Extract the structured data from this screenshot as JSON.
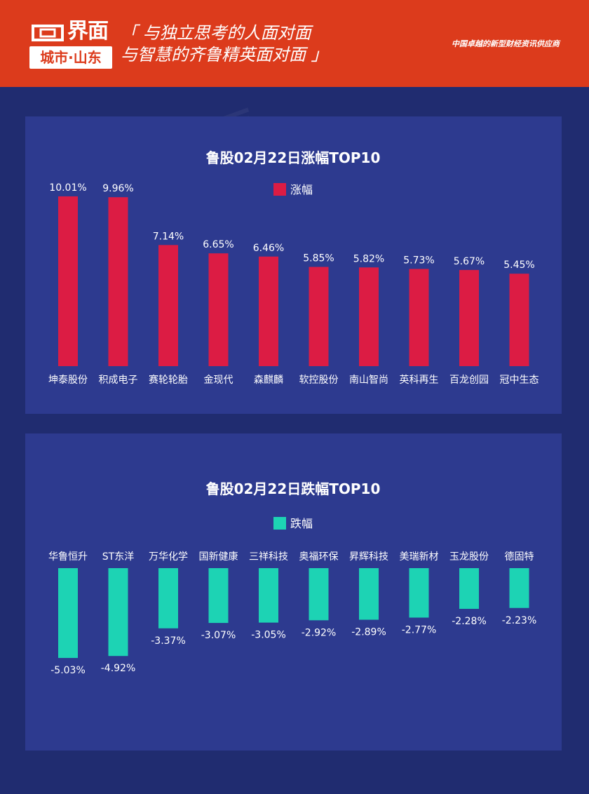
{
  "header": {
    "logo_name": "界面",
    "logo_sub": "城市·山东",
    "slogan_line1": "「 与独立思考的人面对面",
    "slogan_line2": "与智慧的齐鲁精英面对面 」",
    "tagline": "中国卓越的新型财经资讯供应商"
  },
  "colors": {
    "header_bg": "#dc3b1c",
    "page_bg": "#202c70",
    "panel_bg": "#2d3a8f",
    "gain_bar": "#dc1c44",
    "loss_bar": "#1dd3b4"
  },
  "chart_data": [
    {
      "type": "bar",
      "title": "鲁股02月22日涨幅TOP10",
      "categories": [
        "坤泰股份",
        "积成电子",
        "赛轮轮胎",
        "金现代",
        "森麒麟",
        "软控股份",
        "南山智尚",
        "英科再生",
        "百龙创园",
        "冠中生态"
      ],
      "series": [
        {
          "name": "涨幅",
          "values": [
            10.01,
            9.96,
            7.14,
            6.65,
            6.46,
            5.85,
            5.82,
            5.73,
            5.67,
            5.45
          ],
          "labels": [
            "10.01%",
            "9.96%",
            "7.14%",
            "6.65%",
            "6.46%",
            "5.85%",
            "5.82%",
            "5.73%",
            "5.67%",
            "5.45%"
          ]
        }
      ],
      "ylim": [
        0,
        11
      ],
      "legend": "top-center",
      "grid": false
    },
    {
      "type": "bar",
      "title": "鲁股02月22日跌幅TOP10",
      "categories": [
        "华鲁恒升",
        "ST东洋",
        "万华化学",
        "国新健康",
        "三祥科技",
        "奥福环保",
        "昇辉科技",
        "美瑞新材",
        "玉龙股份",
        "德固特"
      ],
      "series": [
        {
          "name": "跌幅",
          "values": [
            -5.03,
            -4.92,
            -3.37,
            -3.07,
            -3.05,
            -2.92,
            -2.89,
            -2.77,
            -2.28,
            -2.23
          ],
          "labels": [
            "-5.03%",
            "-4.92%",
            "-3.37%",
            "-3.07%",
            "-3.05%",
            "-2.92%",
            "-2.89%",
            "-2.77%",
            "-2.28%",
            "-2.23%"
          ]
        }
      ],
      "ylim": [
        -5.5,
        0
      ],
      "legend": "top-center",
      "grid": false
    }
  ]
}
